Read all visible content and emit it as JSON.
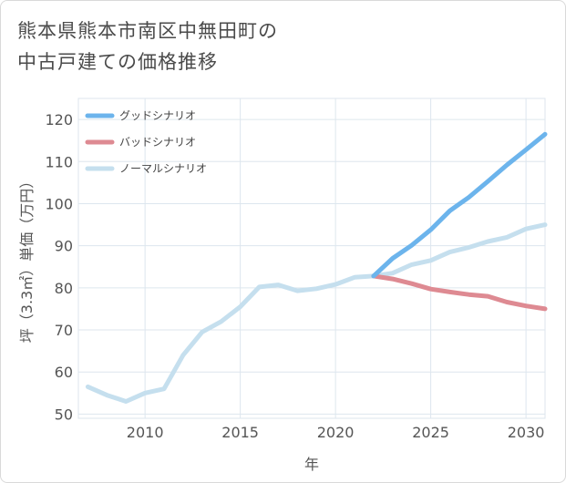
{
  "title": "熊本県熊本市南区中無田町の\n中古戸建ての価格推移",
  "chart_data": {
    "type": "line",
    "xlabel": "年",
    "ylabel": "坪（3.3㎡）単価（万円）",
    "xlim": [
      2006.5,
      2031
    ],
    "ylim": [
      49,
      125
    ],
    "xticks": [
      2010,
      2015,
      2020,
      2025,
      2030
    ],
    "yticks": [
      50,
      60,
      70,
      80,
      90,
      100,
      110,
      120
    ],
    "grid": true,
    "legend_position": "top-left",
    "series": [
      {
        "name": "グッドシナリオ",
        "color": "#6cb4ec",
        "x": [
          2022,
          2023,
          2024,
          2025,
          2026,
          2027,
          2028,
          2029,
          2030,
          2031
        ],
        "y": [
          82.8,
          87.0,
          90.1,
          93.8,
          98.3,
          101.5,
          105.3,
          109.2,
          112.8,
          116.5
        ]
      },
      {
        "name": "バッドシナリオ",
        "color": "#de8a92",
        "x": [
          2022,
          2023,
          2024,
          2025,
          2026,
          2027,
          2028,
          2029,
          2030,
          2031
        ],
        "y": [
          82.8,
          82.1,
          81.0,
          79.7,
          79.0,
          78.4,
          78.0,
          76.6,
          75.7,
          75.0
        ]
      },
      {
        "name": "ノーマルシナリオ",
        "color": "#c5dfee",
        "x": [
          2007,
          2008,
          2009,
          2010,
          2011,
          2012,
          2013,
          2014,
          2015,
          2016,
          2017,
          2018,
          2019,
          2020,
          2021,
          2022,
          2023,
          2024,
          2025,
          2026,
          2027,
          2028,
          2029,
          2030,
          2031
        ],
        "y": [
          56.5,
          54.5,
          53.0,
          55.0,
          56.0,
          64.0,
          69.5,
          72.0,
          75.5,
          80.2,
          80.7,
          79.3,
          79.8,
          80.8,
          82.5,
          82.8,
          83.5,
          85.5,
          86.5,
          88.5,
          89.6,
          91.0,
          92.0,
          94.0,
          95.0
        ]
      }
    ]
  }
}
